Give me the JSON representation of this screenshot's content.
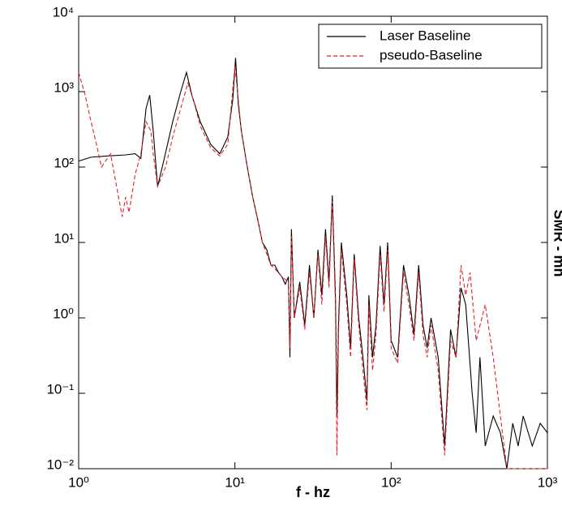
{
  "chart_data": {
    "type": "line",
    "log_x": true,
    "log_y": true,
    "x_label": "f - hz",
    "y2_label": "SMR - mn",
    "xlim": [
      1,
      1000
    ],
    "ylim": [
      0.01,
      10000
    ],
    "xticks": [
      {
        "value": 1,
        "label": "10⁰"
      },
      {
        "value": 10,
        "label": "10¹"
      },
      {
        "value": 100,
        "label": "10²"
      },
      {
        "value": 1000,
        "label": "10³"
      }
    ],
    "yticks": [
      {
        "value": 0.01,
        "label": "10⁻²"
      },
      {
        "value": 0.1,
        "label": "10⁻¹"
      },
      {
        "value": 1,
        "label": "10⁰"
      },
      {
        "value": 10,
        "label": "10¹"
      },
      {
        "value": 100,
        "label": "10²"
      },
      {
        "value": 1000,
        "label": "10³"
      },
      {
        "value": 10000,
        "label": "10⁴"
      }
    ],
    "legend": "upper right",
    "series": [
      {
        "name": "Laser Baseline",
        "color": "#000000",
        "linestyle": "solid",
        "x": [
          1,
          1.2,
          1.5,
          2,
          2.3,
          2.5,
          2.7,
          2.85,
          3.0,
          3.2,
          3.5,
          4,
          4.5,
          4.9,
          5.3,
          6,
          7,
          8,
          9,
          9.7,
          10.1,
          10.5,
          11,
          12,
          13,
          14,
          15,
          16,
          17,
          18,
          19,
          20,
          21,
          22,
          22.5,
          23,
          24,
          26,
          28,
          30,
          32,
          34,
          36,
          38,
          40,
          42,
          44,
          45,
          46,
          48,
          52,
          55,
          58,
          62,
          66,
          70,
          72,
          76,
          80,
          85,
          90,
          95,
          100,
          110,
          120,
          130,
          140,
          150,
          160,
          170,
          180,
          200,
          220,
          240,
          260,
          280,
          300,
          330,
          350,
          370,
          400,
          450,
          500,
          550,
          600,
          650,
          700,
          800,
          900,
          1000
        ],
        "values": [
          120,
          135,
          140,
          145,
          150,
          130,
          600,
          900,
          300,
          55,
          120,
          400,
          1000,
          1800,
          900,
          400,
          200,
          150,
          250,
          800,
          2800,
          700,
          300,
          100,
          40,
          20,
          10,
          8,
          5,
          5,
          4,
          3.5,
          2.8,
          3.5,
          0.3,
          15,
          1,
          3,
          0.8,
          5,
          1,
          8,
          2,
          15,
          3,
          42,
          2,
          0.05,
          0.8,
          10,
          2,
          0.4,
          7,
          1,
          0.3,
          0.08,
          2,
          0.3,
          0.8,
          9,
          1.5,
          10,
          0.5,
          0.3,
          5,
          2,
          0.6,
          5,
          0.8,
          0.4,
          1,
          0.3,
          0.02,
          0.7,
          0.3,
          2.5,
          1.5,
          0.1,
          0.03,
          0.3,
          0.02,
          0.05,
          0.03,
          0.01,
          0.04,
          0.02,
          0.05,
          0.02,
          0.04,
          0.03
        ]
      },
      {
        "name": "pseudo-Baseline",
        "color": "#e8202a",
        "linestyle": "dashed",
        "x": [
          1,
          1.1,
          1.2,
          1.3,
          1.4,
          1.6,
          1.8,
          1.9,
          2.0,
          2.1,
          2.3,
          2.5,
          2.7,
          2.9,
          3.0,
          3.2,
          3.6,
          4,
          4.5,
          5,
          5.5,
          6,
          7,
          8,
          9,
          10,
          10.5,
          11,
          12,
          13,
          14,
          15,
          16,
          17,
          18,
          20,
          22,
          22.5,
          23,
          24,
          26,
          28,
          30,
          32,
          34,
          36,
          38,
          40,
          42,
          44,
          45,
          46,
          48,
          52,
          55,
          58,
          62,
          66,
          70,
          72,
          76,
          80,
          85,
          90,
          95,
          100,
          110,
          120,
          130,
          140,
          150,
          160,
          170,
          180,
          200,
          220,
          240,
          260,
          280,
          300,
          320,
          350,
          400,
          450,
          500,
          550,
          600,
          700,
          800,
          1000
        ],
        "values": [
          1800,
          900,
          400,
          200,
          100,
          150,
          40,
          22,
          40,
          25,
          80,
          150,
          400,
          300,
          150,
          55,
          100,
          250,
          600,
          1300,
          700,
          350,
          180,
          140,
          200,
          2200,
          800,
          300,
          100,
          40,
          20,
          10,
          7,
          5,
          4.5,
          3.5,
          3,
          0.4,
          12,
          1,
          2.5,
          0.7,
          4,
          1,
          7,
          1.5,
          12,
          2.5,
          35,
          1.5,
          0.015,
          0.6,
          8,
          1.5,
          0.3,
          6,
          0.8,
          0.2,
          0.06,
          1.5,
          0.2,
          0.6,
          7,
          1.2,
          8,
          0.4,
          0.25,
          4,
          1.5,
          0.5,
          4,
          0.6,
          0.3,
          0.8,
          0.2,
          0.015,
          0.5,
          0.3,
          5,
          2,
          4,
          0.5,
          1.5,
          0.3,
          0.05,
          0.01,
          0.01,
          0.01,
          0.01,
          0.01
        ]
      }
    ]
  }
}
